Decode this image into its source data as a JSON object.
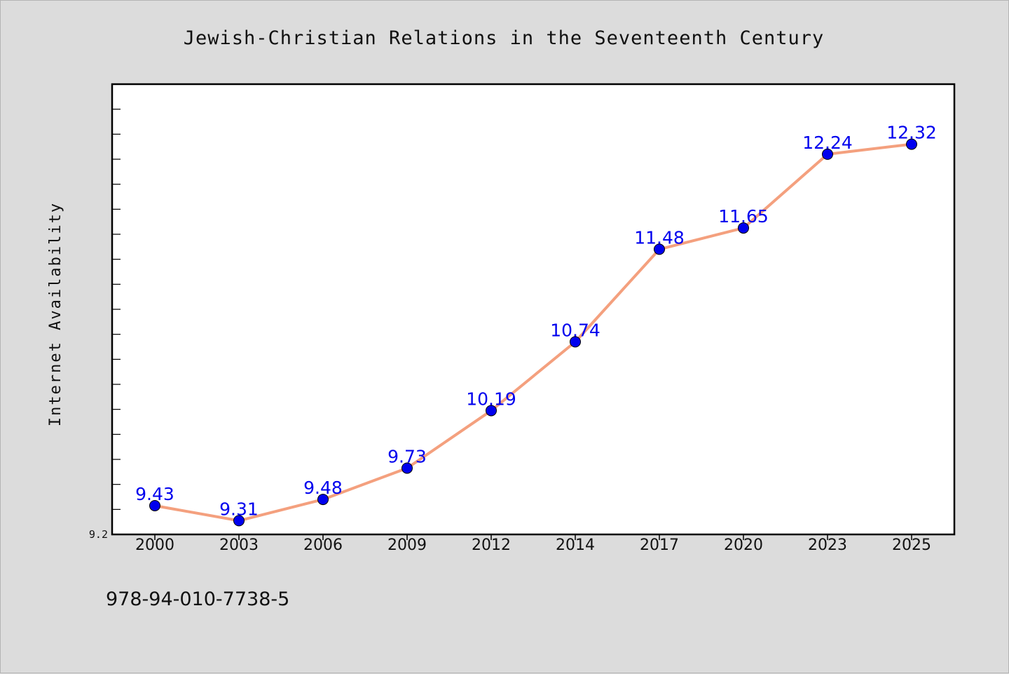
{
  "chart_data": {
    "type": "line",
    "title": "Jewish-Christian Relations in the Seventeenth Century",
    "xlabel": "",
    "ylabel": "Internet Availability",
    "categories": [
      "2000",
      "2003",
      "2006",
      "2009",
      "2012",
      "2014",
      "2017",
      "2020",
      "2023",
      "2025"
    ],
    "series": [
      {
        "values": [
          9.43,
          9.31,
          9.48,
          9.73,
          10.19,
          10.74,
          11.48,
          11.65,
          12.24,
          12.32
        ],
        "labels": [
          "9.43",
          "9.31",
          "9.48",
          "9.73",
          "10.19",
          "10.74",
          "11.48",
          "11.65",
          "12.24",
          "12.32"
        ]
      }
    ],
    "ylim": [
      9.2,
      12.8
    ],
    "ytick_labels": [
      "9.2"
    ],
    "grid": false,
    "line_color": "#f4a07e",
    "marker_color": "#0000ee",
    "label_color": "#0000ee"
  },
  "footer": {
    "isbn": "978-94-010-7738-5"
  }
}
